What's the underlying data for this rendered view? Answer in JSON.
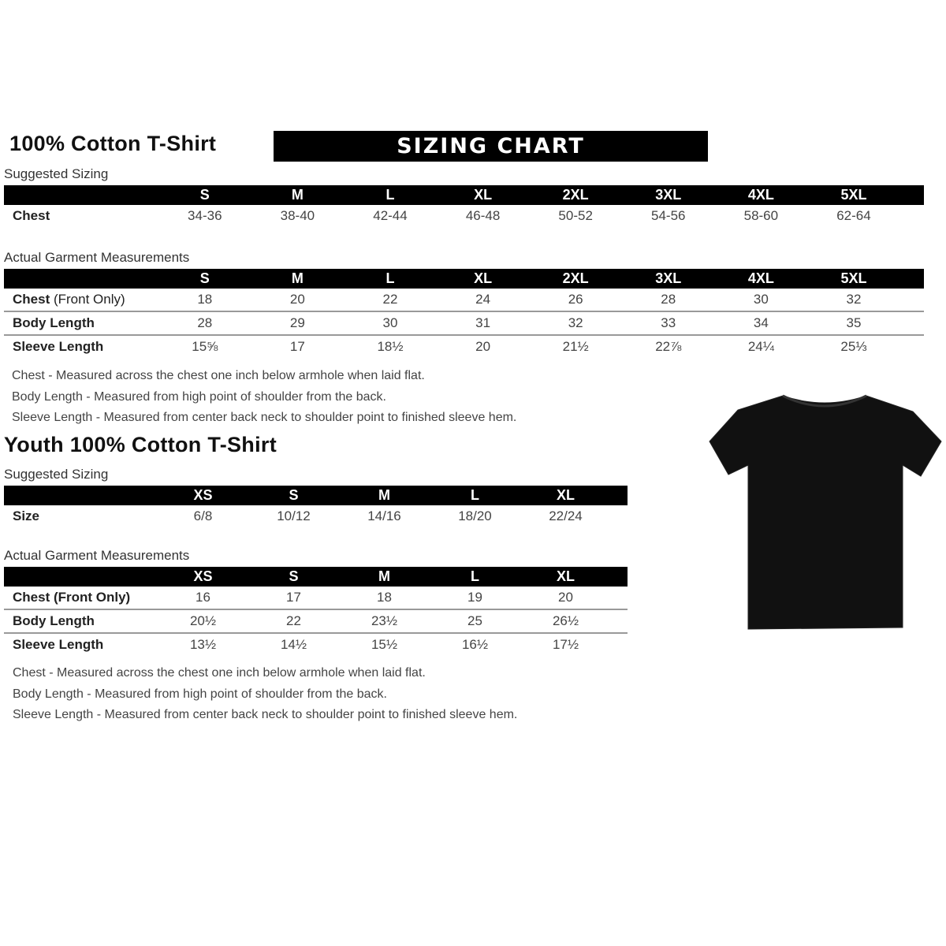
{
  "adult": {
    "title": "100% Cotton T-Shirt",
    "banner": "SIZING CHART",
    "suggested_label": "Suggested Sizing",
    "sizes": [
      "S",
      "M",
      "L",
      "XL",
      "2XL",
      "3XL",
      "4XL",
      "5XL"
    ],
    "suggested_rows": [
      {
        "label": "Chest",
        "values": [
          "34-36",
          "38-40",
          "42-44",
          "46-48",
          "50-52",
          "54-56",
          "58-60",
          "62-64"
        ]
      }
    ],
    "actual_label": "Actual Garment Measurements",
    "actual_rows": [
      {
        "label": "Chest",
        "label_extra": " (Front Only)",
        "values": [
          "18",
          "20",
          "22",
          "24",
          "26",
          "28",
          "30",
          "32"
        ]
      },
      {
        "label": "Body Length",
        "label_extra": "",
        "values": [
          "28",
          "29",
          "30",
          "31",
          "32",
          "33",
          "34",
          "35"
        ]
      },
      {
        "label": "Sleeve Length",
        "label_extra": "",
        "values": [
          "15⅝",
          "17",
          "18½",
          "20",
          "21½",
          "22⅞",
          "24¼",
          "25⅓"
        ]
      }
    ],
    "notes": [
      "Chest - Measured across the chest one inch below armhole when laid flat.",
      "Body Length - Measured from high point of shoulder from the back.",
      "Sleeve Length - Measured from center back neck to shoulder point to finished sleeve hem."
    ]
  },
  "youth": {
    "title": "Youth 100% Cotton T-Shirt",
    "suggested_label": "Suggested Sizing",
    "sizes": [
      "XS",
      "S",
      "M",
      "L",
      "XL"
    ],
    "suggested_rows": [
      {
        "label": "Size",
        "values": [
          "6/8",
          "10/12",
          "14/16",
          "18/20",
          "22/24"
        ]
      }
    ],
    "actual_label": "Actual Garment Measurements",
    "actual_rows": [
      {
        "label": "Chest (Front Only)",
        "label_extra": "",
        "values": [
          "16",
          "17",
          "18",
          "19",
          "20"
        ]
      },
      {
        "label": "Body Length",
        "label_extra": "",
        "values": [
          "20½",
          "22",
          "23½",
          "25",
          "26½"
        ]
      },
      {
        "label": "Sleeve Length",
        "label_extra": "",
        "values": [
          "13½",
          "14½",
          "15½",
          "16½",
          "17½"
        ]
      }
    ],
    "notes": [
      "Chest - Measured across the chest one inch below armhole when laid flat.",
      "Body Length - Measured from high point of shoulder from the back.",
      "Sleeve Length - Measured from center back neck to shoulder point to finished sleeve hem."
    ]
  },
  "shirt_image": {
    "icon": "tshirt-icon",
    "color": "#111111"
  }
}
